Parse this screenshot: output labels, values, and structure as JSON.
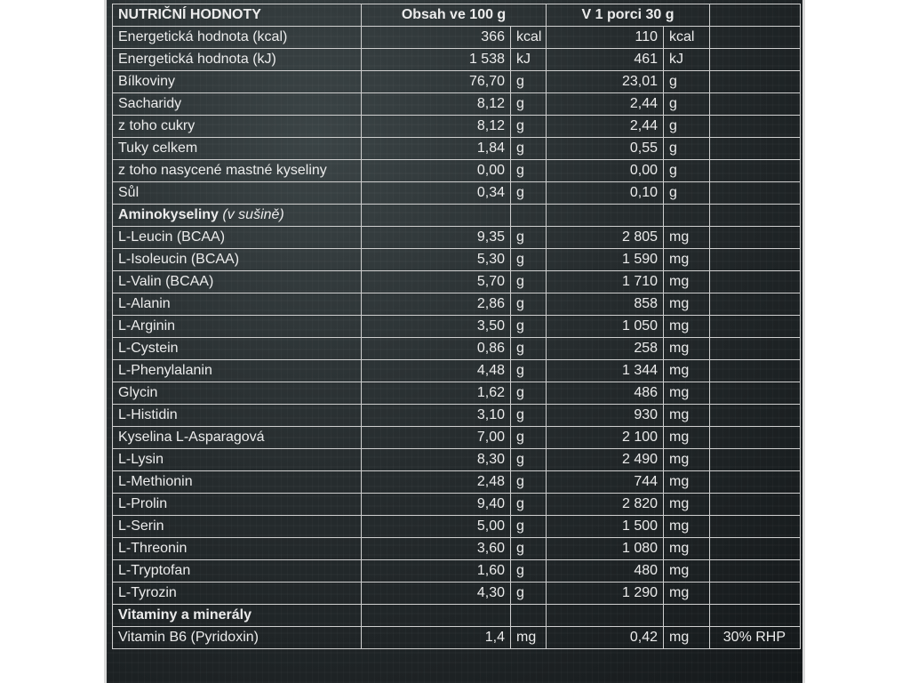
{
  "header": {
    "title": "NUTRIČNÍ HODNOTY",
    "col_100g": "Obsah ve 100 g",
    "col_portion": "V 1 porci 30 g"
  },
  "nutrition_rows": [
    {
      "name": "Energetická hodnota (kcal)",
      "v100": "366",
      "u100": "kcal",
      "vp": "110",
      "up": "kcal"
    },
    {
      "name": "Energetická hodnota (kJ)",
      "v100": "1 538",
      "u100": "kJ",
      "vp": "461",
      "up": "kJ"
    },
    {
      "name": "Bílkoviny",
      "v100": "76,70",
      "u100": "g",
      "vp": "23,01",
      "up": "g"
    },
    {
      "name": "Sacharidy",
      "v100": "8,12",
      "u100": "g",
      "vp": "2,44",
      "up": "g"
    },
    {
      "name": "z toho cukry",
      "v100": "8,12",
      "u100": "g",
      "vp": "2,44",
      "up": "g"
    },
    {
      "name": "Tuky celkem",
      "v100": "1,84",
      "u100": "g",
      "vp": "0,55",
      "up": "g"
    },
    {
      "name": "z toho nasycené mastné kyseliny",
      "v100": "0,00",
      "u100": "g",
      "vp": "0,00",
      "up": "g"
    },
    {
      "name": "Sůl",
      "v100": "0,34",
      "u100": "g",
      "vp": "0,10",
      "up": "g"
    }
  ],
  "amino_section": {
    "title": "Aminokyseliny",
    "note": "(v sušině)"
  },
  "amino_rows": [
    {
      "name": "L-Leucin (BCAA)",
      "v100": "9,35",
      "u100": "g",
      "vp": "2 805",
      "up": "mg"
    },
    {
      "name": "L-Isoleucin (BCAA)",
      "v100": "5,30",
      "u100": "g",
      "vp": "1 590",
      "up": "mg"
    },
    {
      "name": "L-Valin (BCAA)",
      "v100": "5,70",
      "u100": "g",
      "vp": "1 710",
      "up": "mg"
    },
    {
      "name": "L-Alanin",
      "v100": "2,86",
      "u100": "g",
      "vp": "858",
      "up": "mg"
    },
    {
      "name": "L-Arginin",
      "v100": "3,50",
      "u100": "g",
      "vp": "1 050",
      "up": "mg"
    },
    {
      "name": "L-Cystein",
      "v100": "0,86",
      "u100": "g",
      "vp": "258",
      "up": "mg"
    },
    {
      "name": "L-Phenylalanin",
      "v100": "4,48",
      "u100": "g",
      "vp": "1 344",
      "up": "mg"
    },
    {
      "name": "Glycin",
      "v100": "1,62",
      "u100": "g",
      "vp": "486",
      "up": "mg"
    },
    {
      "name": "L-Histidin",
      "v100": "3,10",
      "u100": "g",
      "vp": "930",
      "up": "mg"
    },
    {
      "name": "Kyselina L-Asparagová",
      "v100": "7,00",
      "u100": "g",
      "vp": "2 100",
      "up": "mg"
    },
    {
      "name": "L-Lysin",
      "v100": "8,30",
      "u100": "g",
      "vp": "2 490",
      "up": "mg"
    },
    {
      "name": "L-Methionin",
      "v100": "2,48",
      "u100": "g",
      "vp": "744",
      "up": "mg"
    },
    {
      "name": "L-Prolin",
      "v100": "9,40",
      "u100": "g",
      "vp": "2 820",
      "up": "mg"
    },
    {
      "name": "L-Serin",
      "v100": "5,00",
      "u100": "g",
      "vp": "1 500",
      "up": "mg"
    },
    {
      "name": "L-Threonin",
      "v100": "3,60",
      "u100": "g",
      "vp": "1 080",
      "up": "mg"
    },
    {
      "name": "L-Tryptofan",
      "v100": "1,60",
      "u100": "g",
      "vp": "480",
      "up": "mg"
    },
    {
      "name": "L-Tyrozin",
      "v100": "4,30",
      "u100": "g",
      "vp": "1 290",
      "up": "mg"
    }
  ],
  "vitamin_section": {
    "title": "Vitaminy a minerály"
  },
  "vitamin_rows": [
    {
      "name": "Vitamin B6 (Pyridoxin)",
      "v100": "1,4",
      "u100": "mg",
      "vp": "0,42",
      "up": "mg",
      "note": "30% RHP"
    }
  ]
}
